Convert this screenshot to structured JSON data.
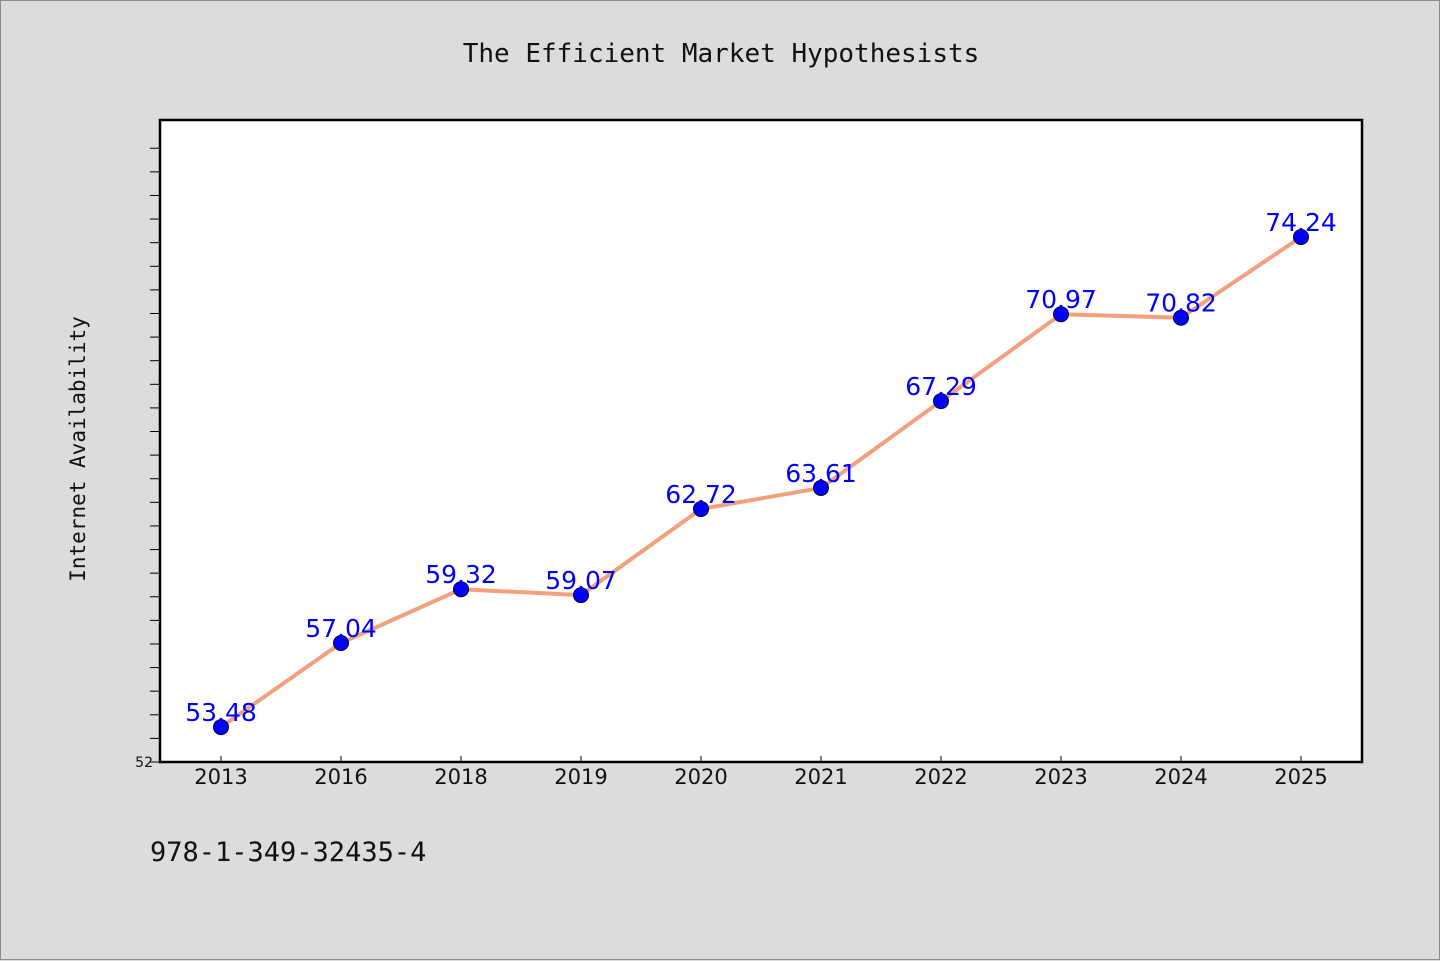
{
  "footer_code": "978-1-349-32435-4",
  "colors": {
    "background": "#dcdcdc",
    "plot_background": "#ffffff",
    "line": "#f4a07e",
    "marker": "#0000ff",
    "data_label": "#0000ff"
  },
  "chart_data": {
    "type": "line",
    "title": "The Efficient Market Hypothesists",
    "xlabel": "",
    "ylabel": "Internet Availability",
    "categories": [
      "2013",
      "2016",
      "2018",
      "2019",
      "2020",
      "2021",
      "2022",
      "2023",
      "2024",
      "2025"
    ],
    "series": [
      {
        "values": [
          53.48,
          57.04,
          59.32,
          59.07,
          62.72,
          63.61,
          67.29,
          70.97,
          70.82,
          74.24
        ],
        "labels": [
          "53.48",
          "57.04",
          "59.32",
          "59.07",
          "62.72",
          "63.61",
          "67.29",
          "70.97",
          "70.82",
          "74.24"
        ]
      }
    ],
    "ylim": [
      52,
      78
    ],
    "yticks_labeled": [
      "52"
    ],
    "grid": false,
    "legend": false
  }
}
